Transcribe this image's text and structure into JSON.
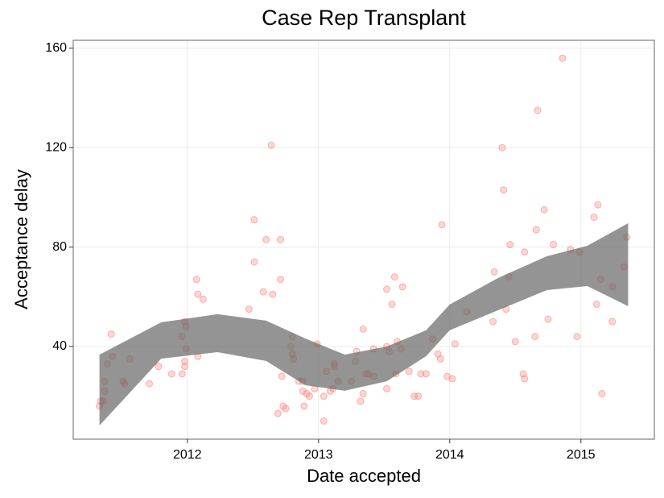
{
  "chart_data": {
    "type": "scatter",
    "title": "Case Rep Transplant",
    "xlabel": "Date accepted",
    "ylabel": "Acceptance delay",
    "x": [
      2011.33,
      2011.34,
      2011.36,
      2011.37,
      2011.37,
      2011.39,
      2011.42,
      2011.43,
      2011.51,
      2011.52,
      2011.56,
      2011.71,
      2011.78,
      2011.88,
      2011.96,
      2011.96,
      2011.98,
      2011.98,
      2011.98,
      2011.99,
      2011.99,
      2012.07,
      2012.08,
      2012.08,
      2012.12,
      2012.47,
      2012.51,
      2012.51,
      2012.6,
      2012.58,
      2012.65,
      2012.64,
      2012.71,
      2012.71,
      2012.72,
      2012.73,
      2012.69,
      2012.75,
      2012.79,
      2012.8,
      2012.8,
      2012.81,
      2012.85,
      2012.88,
      2012.88,
      2012.89,
      2012.91,
      2012.93,
      2012.97,
      2012.99,
      2013.04,
      2013.04,
      2013.06,
      2013.09,
      2013.11,
      2013.12,
      2013.12,
      2013.15,
      2013.25,
      2013.28,
      2013.29,
      2013.34,
      2013.34,
      2013.36,
      2013.38,
      2013.42,
      2013.42,
      2013.32,
      2013.52,
      2013.52,
      2013.54,
      2013.56,
      2013.52,
      2013.58,
      2013.6,
      2013.63,
      2013.59,
      2013.64,
      2013.69,
      2013.73,
      2013.76,
      2013.78,
      2013.82,
      2013.87,
      2013.91,
      2013.93,
      2013.94,
      2013.98,
      2014.02,
      2014.04,
      2014.13,
      2014.33,
      2014.34,
      2014.4,
      2014.41,
      2014.43,
      2014.45,
      2014.46,
      2014.5,
      2014.56,
      2014.57,
      2014.57,
      2014.65,
      2014.66,
      2014.67,
      2014.72,
      2014.75,
      2014.79,
      2014.86,
      2014.92,
      2014.97,
      2014.99,
      2015.1,
      2015.12,
      2015.13,
      2015.15,
      2015.16,
      2015.24,
      2015.24,
      2015.33,
      2015.35
    ],
    "values": [
      16,
      18,
      18,
      26,
      22,
      33,
      45,
      36,
      26,
      25,
      35,
      25,
      32,
      29,
      29,
      44,
      32,
      34,
      50,
      39,
      48,
      67,
      61,
      36,
      59,
      55,
      91,
      74,
      83,
      62,
      61,
      121,
      67,
      83,
      28,
      16,
      13,
      15,
      40,
      44,
      37,
      35,
      26,
      26,
      22,
      16,
      21,
      20,
      23,
      41,
      20,
      10,
      30,
      22,
      23,
      32,
      33,
      26,
      26,
      34,
      38,
      21,
      47,
      29,
      29,
      28,
      39,
      18,
      23,
      40,
      38,
      57,
      63,
      68,
      42,
      39,
      29,
      64,
      30,
      20,
      20,
      29,
      29,
      43,
      37,
      35,
      89,
      28,
      27,
      41,
      54,
      50,
      70,
      120,
      103,
      55,
      68,
      81,
      42,
      29,
      27,
      78,
      44,
      87,
      135,
      95,
      51,
      81,
      156,
      79,
      44,
      78,
      92,
      57,
      97,
      67,
      21,
      64,
      50,
      72,
      84
    ],
    "color": "#f8766d",
    "band": {
      "x": [
        2011.33,
        2011.8,
        2012.23,
        2012.6,
        2012.9,
        2013.2,
        2013.52,
        2013.82,
        2014.0,
        2014.37,
        2014.74,
        2015.05,
        2015.36
      ],
      "upper": [
        36.7,
        49.7,
        53,
        50.4,
        43.2,
        36.7,
        40,
        46.5,
        56.9,
        67.6,
        76.3,
        80.5,
        89.6
      ],
      "lower": [
        8.2,
        35.1,
        37.7,
        34.2,
        24.4,
        22.2,
        26,
        36.1,
        46.5,
        54.6,
        62.7,
        64.3,
        56.2
      ],
      "color": "#666666"
    },
    "xlim": [
      2011.13,
      2015.56
    ],
    "ylim": [
      2.7,
      163.2
    ],
    "xticks": [
      2012,
      2013,
      2014,
      2015
    ],
    "yticks": [
      40,
      80,
      120,
      160
    ],
    "grid": true
  }
}
